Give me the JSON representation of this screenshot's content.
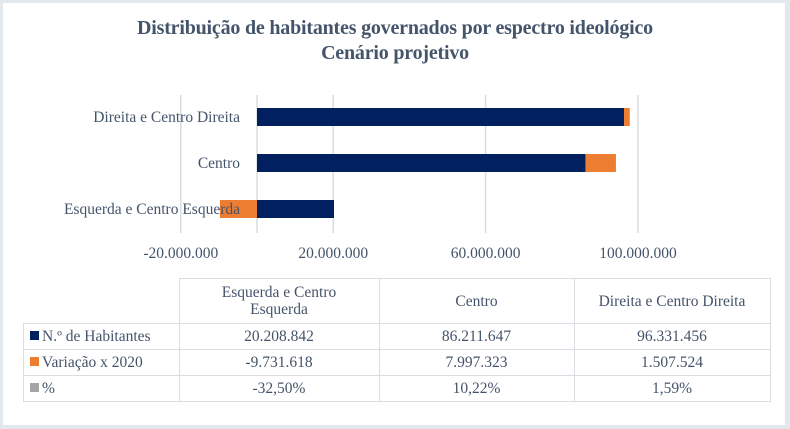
{
  "chart_data": {
    "type": "bar",
    "orientation": "horizontal",
    "stacked": true,
    "title": "Distribuição de habitantes governados por espectro ideológico",
    "subtitle": "Cenário projetivo",
    "categories": [
      "Esquerda e Centro Esquerda",
      "Centro",
      "Direita e Centro Direita"
    ],
    "series": [
      {
        "name": "N.º de Habitantes",
        "color": "#002060",
        "values": [
          20208842,
          86211647,
          96331456
        ],
        "display": [
          "20.208.842",
          "86.211.647",
          "96.331.456"
        ]
      },
      {
        "name": "Variação x 2020",
        "color": "#ed7d31",
        "values": [
          -9731618,
          7997323,
          1507524
        ],
        "display": [
          "-9.731.618",
          "7.997.323",
          "1.507.524"
        ]
      },
      {
        "name": "%",
        "color": "#a5a5a5",
        "values": [
          -32.5,
          10.22,
          1.59
        ],
        "display": [
          "-32,50%",
          "10,22%",
          "1,59%"
        ]
      }
    ],
    "xlim": [
      -20000000,
      100000000
    ],
    "xticks": [
      -20000000,
      20000000,
      60000000,
      100000000
    ],
    "xtick_labels": [
      "-20.000.000",
      "20.000.000",
      "60.000.000",
      "100.000.000"
    ],
    "gridlines": [
      -20000000,
      0,
      20000000,
      60000000,
      100000000
    ],
    "grid": true,
    "xlabel": "",
    "ylabel": "",
    "legend": "data-table"
  },
  "title": {
    "line1": "Distribuição de habitantes governados por espectro ideológico",
    "line2": "Cenário projetivo"
  },
  "table": {
    "headers": [
      "Esquerda e Centro Esquerda",
      "Centro",
      "Direita e Centro Direita"
    ],
    "header_lines": [
      [
        "Esquerda e Centro",
        "Esquerda"
      ],
      [
        "Centro"
      ],
      [
        "Direita e Centro Direita"
      ]
    ],
    "rows": [
      {
        "label": "N.º de Habitantes",
        "color": "#002060",
        "cells": [
          "20.208.842",
          "86.211.647",
          "96.331.456"
        ]
      },
      {
        "label": "Variação x 2020",
        "color": "#ed7d31",
        "cells": [
          "-9.731.618",
          "7.997.323",
          "1.507.524"
        ]
      },
      {
        "label": "%",
        "color": "#a5a5a5",
        "cells": [
          "-32,50%",
          "10,22%",
          "1,59%"
        ]
      }
    ]
  }
}
